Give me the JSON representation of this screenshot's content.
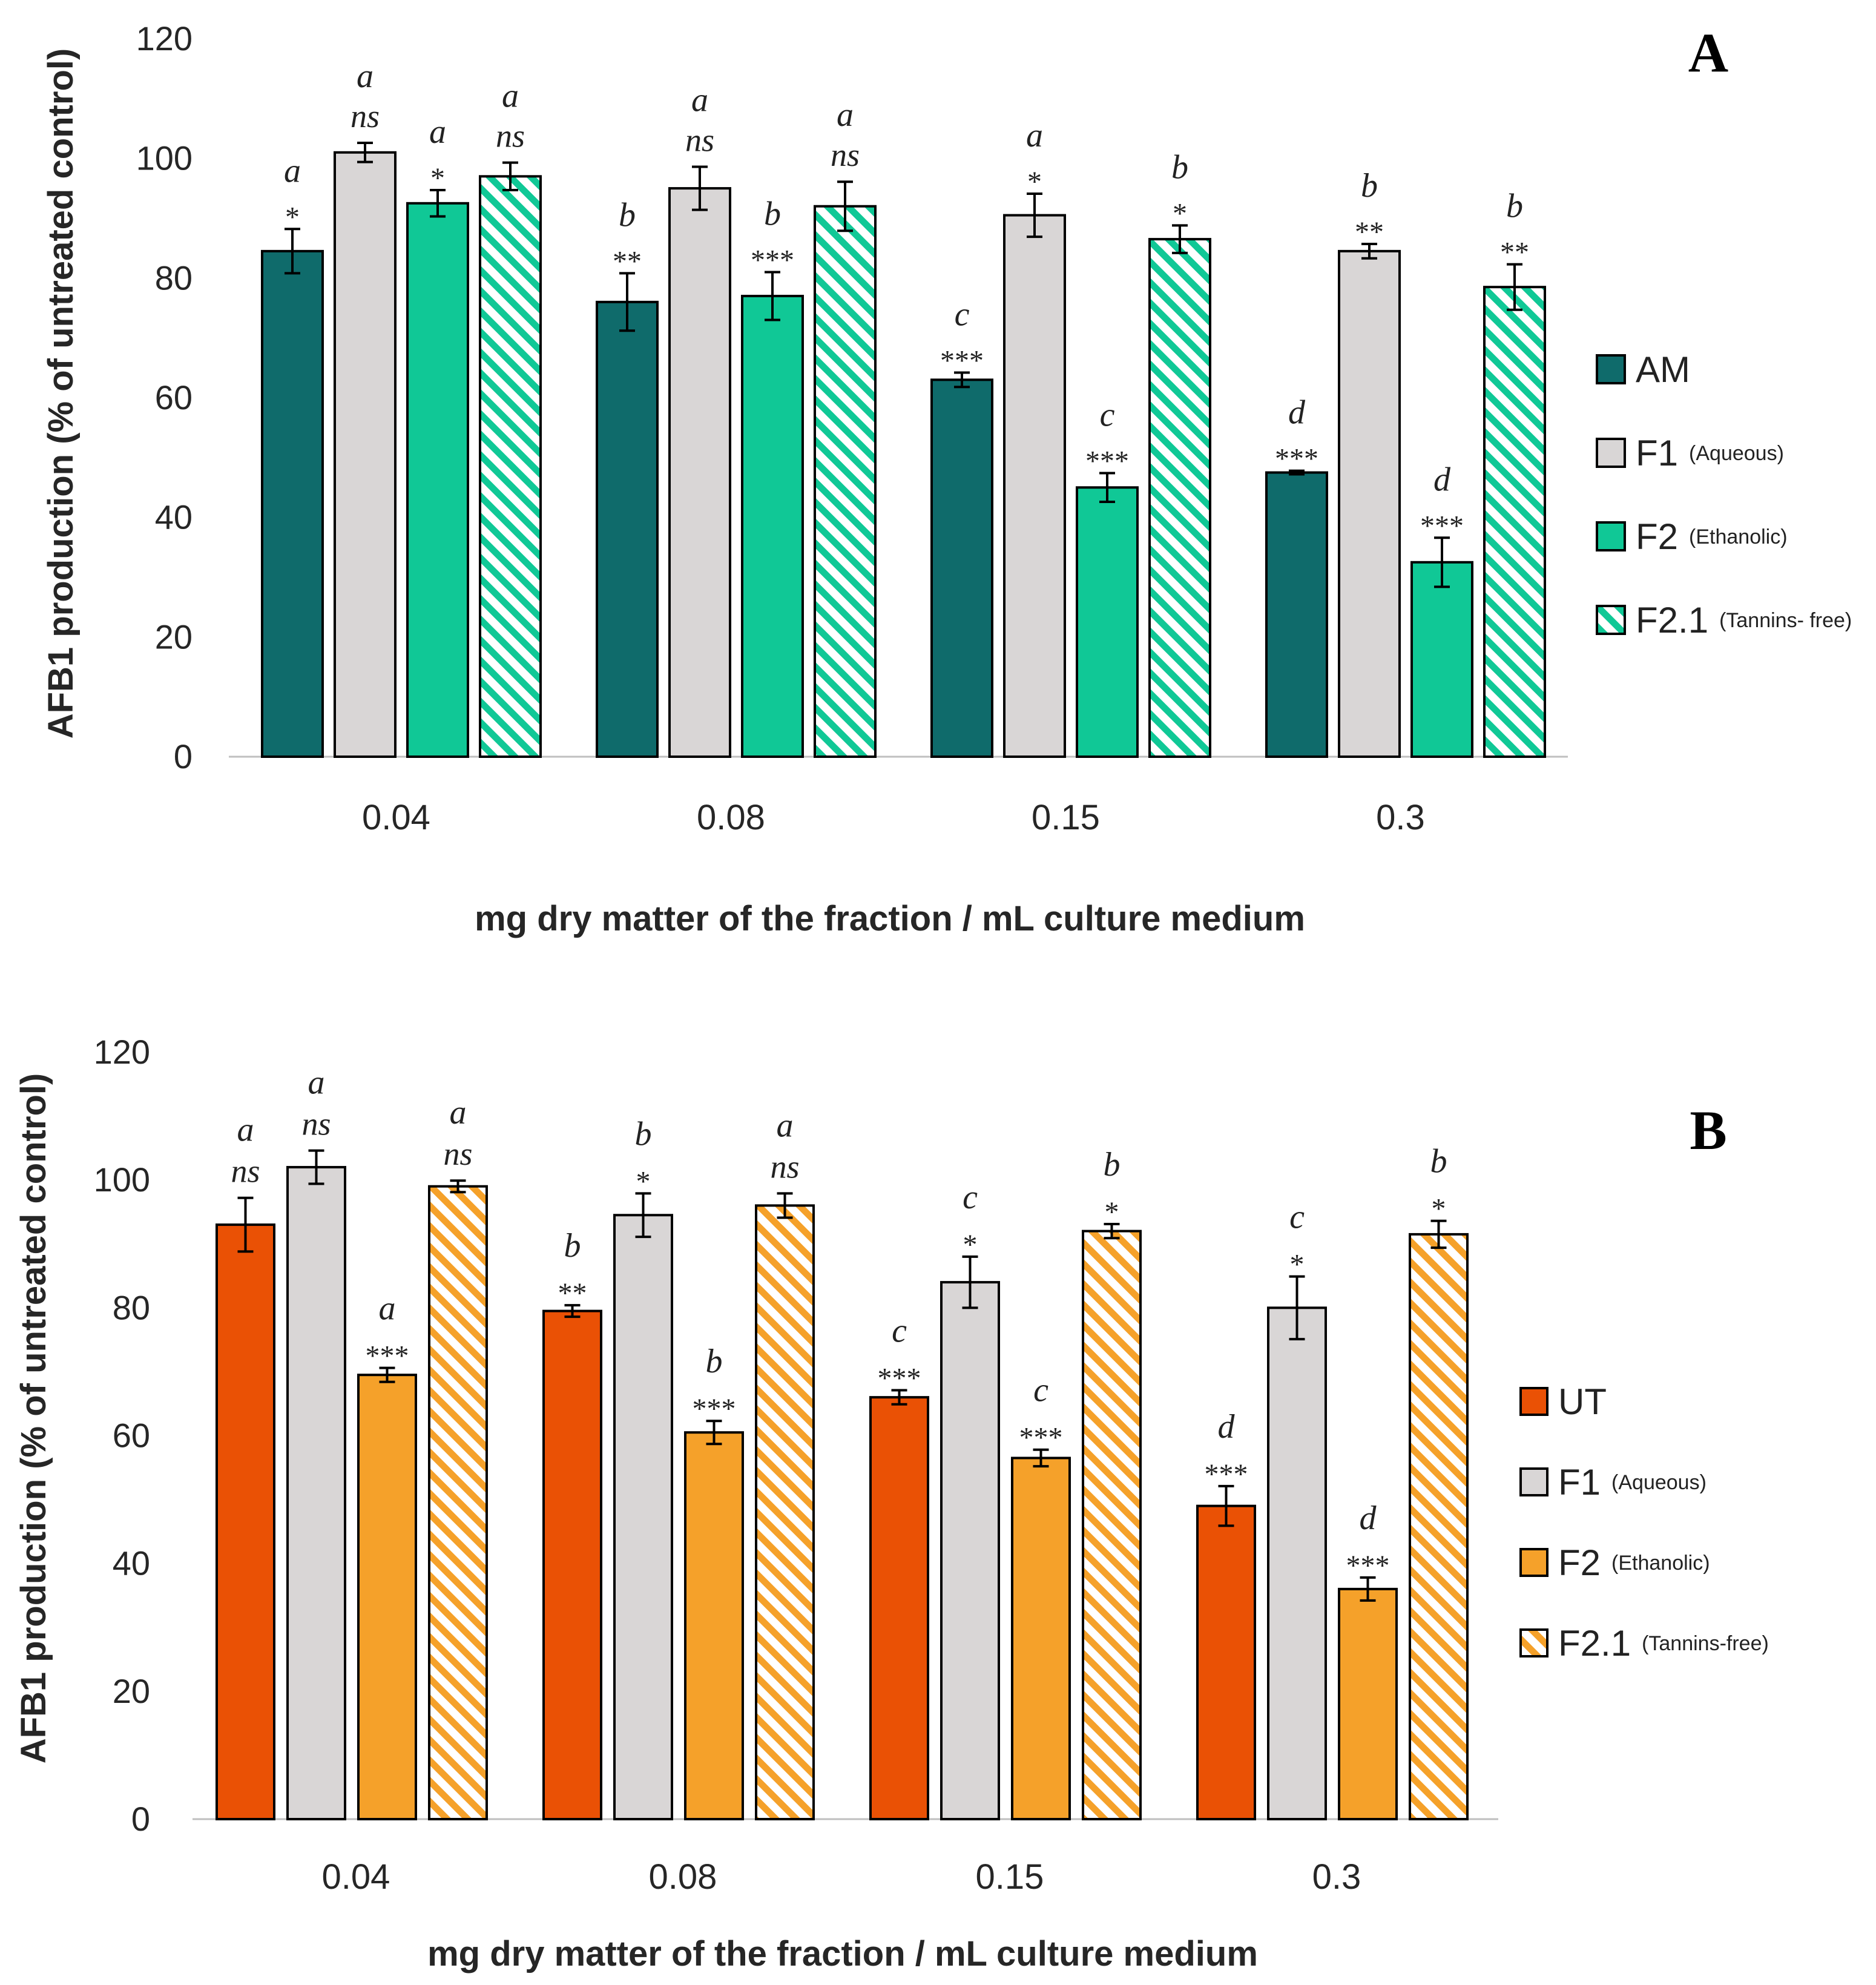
{
  "chart_data": [
    {
      "panel": "A",
      "type": "bar",
      "ylabel": "AFB1 production (% of untreated control)",
      "xlabel": "mg dry matter of the fraction / mL culture medium",
      "ylim": [
        0,
        120
      ],
      "yticks": [
        0,
        20,
        40,
        60,
        80,
        100,
        120
      ],
      "categories": [
        "0.04",
        "0.08",
        "0.15",
        "0.3"
      ],
      "series": [
        {
          "name": "AM",
          "sub": "",
          "color": "#0f6b6b",
          "hatched": false,
          "values": [
            84.5,
            76,
            63,
            47.5
          ],
          "errors": [
            3.7,
            4.8,
            1.2,
            0.3
          ],
          "letters": [
            "a",
            "b",
            "c",
            "d"
          ],
          "sig": [
            "*",
            "**",
            "***",
            "***"
          ]
        },
        {
          "name": "F1",
          "sub": "(Aqueous)",
          "color": "#d9d6d6",
          "hatched": false,
          "values": [
            101,
            95,
            90.5,
            84.5
          ],
          "errors": [
            1.6,
            3.6,
            3.6,
            1.2
          ],
          "letters": [
            "a",
            "a",
            "a",
            "b"
          ],
          "sig": [
            "ns",
            "ns",
            "*",
            "**"
          ]
        },
        {
          "name": "F2",
          "sub": "(Ethanolic)",
          "color": "#10c896",
          "hatched": false,
          "values": [
            92.5,
            77,
            45,
            32.5
          ],
          "errors": [
            2.2,
            4,
            2.4,
            4.1
          ],
          "letters": [
            "a",
            "b",
            "c",
            "d"
          ],
          "sig": [
            "*",
            "***",
            "***",
            "***"
          ]
        },
        {
          "name": "F2.1",
          "sub": "(Tannins- free)",
          "color": "#10c896",
          "hatched": true,
          "values": [
            97,
            92,
            86.5,
            78.5
          ],
          "errors": [
            2.3,
            4.1,
            2.3,
            3.8
          ],
          "letters": [
            "a",
            "a",
            "b",
            "b"
          ],
          "sig": [
            "ns",
            "ns",
            "*",
            "**"
          ]
        }
      ]
    },
    {
      "panel": "B",
      "type": "bar",
      "ylabel": "AFB1 production (% of untreated control)",
      "xlabel": "mg dry matter of the fraction / mL culture medium",
      "ylim": [
        0,
        120
      ],
      "yticks": [
        0,
        20,
        40,
        60,
        80,
        100,
        120
      ],
      "categories": [
        "0.04",
        "0.08",
        "0.15",
        "0.3"
      ],
      "series": [
        {
          "name": "UT",
          "sub": "",
          "color": "#ea5105",
          "hatched": false,
          "values": [
            93,
            79.5,
            66,
            49
          ],
          "errors": [
            4.2,
            0.9,
            1.1,
            3.1
          ],
          "letters": [
            "a",
            "b",
            "c",
            "d"
          ],
          "sig": [
            "ns",
            "**",
            "***",
            "***"
          ]
        },
        {
          "name": "F1",
          "sub": "(Aqueous)",
          "color": "#d9d6d6",
          "hatched": false,
          "values": [
            102,
            94.5,
            84,
            80
          ],
          "errors": [
            2.6,
            3.4,
            4,
            4.9
          ],
          "letters": [
            "a",
            "b",
            "c",
            "c"
          ],
          "sig": [
            "ns",
            "*",
            "*",
            "*"
          ]
        },
        {
          "name": "F2",
          "sub": "(Ethanolic)",
          "color": "#f5a12a",
          "hatched": false,
          "values": [
            69.5,
            60.5,
            56.5,
            36
          ],
          "errors": [
            1.1,
            1.8,
            1.3,
            1.8
          ],
          "letters": [
            "a",
            "b",
            "c",
            "d"
          ],
          "sig": [
            "***",
            "***",
            "***",
            "***"
          ]
        },
        {
          "name": "F2.1",
          "sub": "(Tannins-free)",
          "color": "#f5a12a",
          "hatched": true,
          "values": [
            99,
            96,
            92,
            91.5
          ],
          "errors": [
            0.9,
            1.9,
            1.1,
            2.1
          ],
          "letters": [
            "a",
            "a",
            "b",
            "b"
          ],
          "sig": [
            "ns",
            "ns",
            "*",
            "*"
          ]
        }
      ]
    }
  ]
}
